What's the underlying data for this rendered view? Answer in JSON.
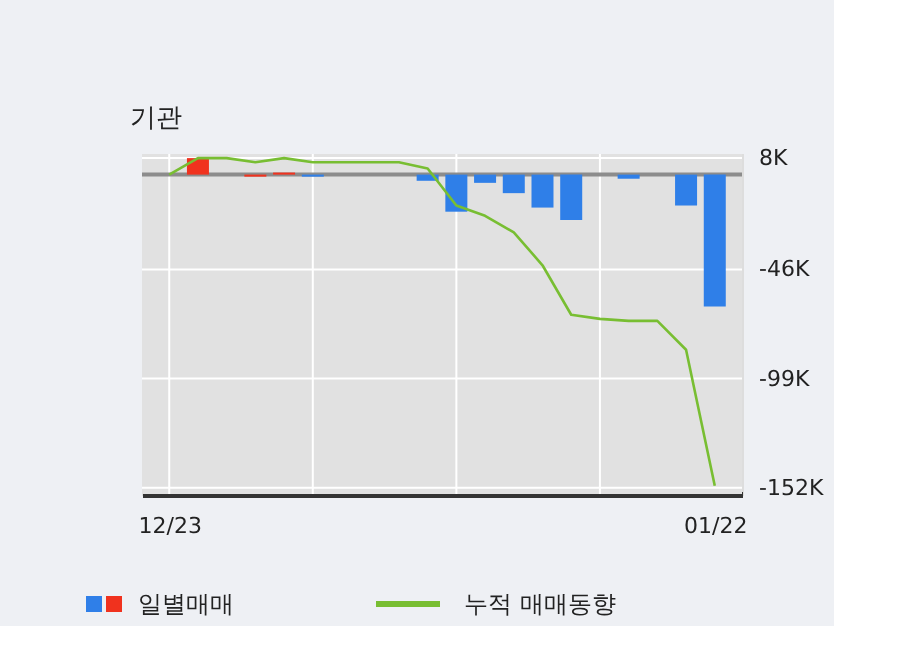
{
  "chart_data": {
    "type": "bar",
    "title": "기관",
    "categories": [
      "12/23",
      null,
      null,
      null,
      null,
      null,
      null,
      null,
      null,
      null,
      null,
      null,
      null,
      null,
      null,
      null,
      null,
      null,
      null,
      "01/22"
    ],
    "series": [
      {
        "name": "일별매매",
        "colors": [
          "#2f7fe8",
          "#f0321e",
          "#2f7fe8",
          "#f0321e",
          "#f0321e",
          "#2f7fe8",
          "#2f7fe8",
          "#2f7fe8",
          "#2f7fe8",
          "#2f7fe8",
          "#2f7fe8",
          "#2f7fe8",
          "#2f7fe8",
          "#2f7fe8",
          "#2f7fe8",
          "#2f7fe8",
          "#2f7fe8",
          "#2f7fe8",
          "#2f7fe8",
          "#2f7fe8"
        ],
        "values": [
          0,
          8000,
          0,
          -1000,
          1000,
          -1000,
          0,
          0,
          0,
          -3000,
          -18000,
          -4000,
          -9000,
          -16000,
          -22000,
          0,
          -2000,
          0,
          -15000,
          -64000
        ]
      },
      {
        "name": "누적 매매동향",
        "type": "line",
        "color": "#78be32",
        "values": [
          0,
          8000,
          8000,
          6000,
          8000,
          6000,
          6000,
          6000,
          6000,
          3000,
          -15000,
          -20000,
          -28000,
          -44000,
          -68000,
          -70000,
          -71000,
          -71000,
          -85000,
          -151000
        ]
      }
    ],
    "ylim": [
      -155000,
      10000
    ],
    "yticks": [
      {
        "value": 8000,
        "label": "8K"
      },
      {
        "value": -46000,
        "label": "-46K"
      },
      {
        "value": -99000,
        "label": "-99K"
      },
      {
        "value": -152000,
        "label": "-152K"
      }
    ],
    "ref_lines": [
      {
        "axis": "y",
        "value": 0,
        "color": "#8c8c8c"
      }
    ],
    "grid": true,
    "legend": "bottom"
  }
}
